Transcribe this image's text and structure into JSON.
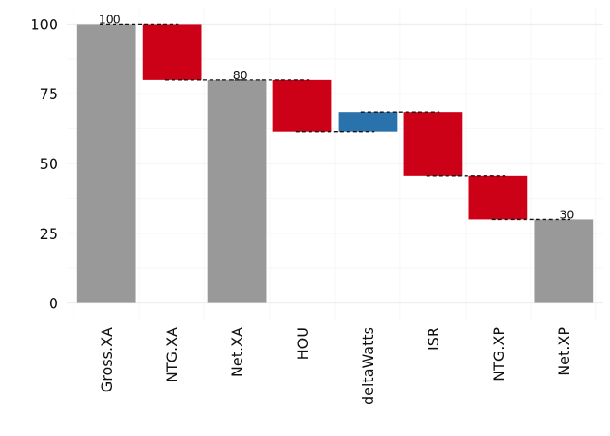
{
  "chart_data": {
    "type": "bar",
    "subtype": "waterfall",
    "categories": [
      "Gross.XA",
      "NTG.XA",
      "Net.XA",
      "HOU",
      "deltaWatts",
      "ISR",
      "NTG.XP",
      "Net.XP"
    ],
    "bars": [
      {
        "category": "Gross.XA",
        "kind": "total",
        "start": 0,
        "end": 100,
        "label": "100"
      },
      {
        "category": "NTG.XA",
        "kind": "decrease",
        "start": 100,
        "end": 80,
        "label": ""
      },
      {
        "category": "Net.XA",
        "kind": "total",
        "start": 0,
        "end": 80,
        "label": "80"
      },
      {
        "category": "HOU",
        "kind": "decrease",
        "start": 80,
        "end": 61.5,
        "label": ""
      },
      {
        "category": "deltaWatts",
        "kind": "increase",
        "start": 61.5,
        "end": 68.5,
        "label": ""
      },
      {
        "category": "ISR",
        "kind": "decrease",
        "start": 68.5,
        "end": 45.5,
        "label": ""
      },
      {
        "category": "NTG.XP",
        "kind": "decrease",
        "start": 45.5,
        "end": 30,
        "label": ""
      },
      {
        "category": "Net.XP",
        "kind": "total",
        "start": 0,
        "end": 30,
        "label": "30"
      }
    ],
    "yticks": [
      0,
      25,
      50,
      75,
      100
    ],
    "ylim": [
      -6,
      106
    ],
    "title": "",
    "xlabel": "",
    "ylabel": "",
    "grid": true,
    "legend": "none",
    "colors": {
      "total": "#999999",
      "decrease": "#cc0016",
      "increase": "#2a72ac",
      "connector": "#111111"
    }
  }
}
